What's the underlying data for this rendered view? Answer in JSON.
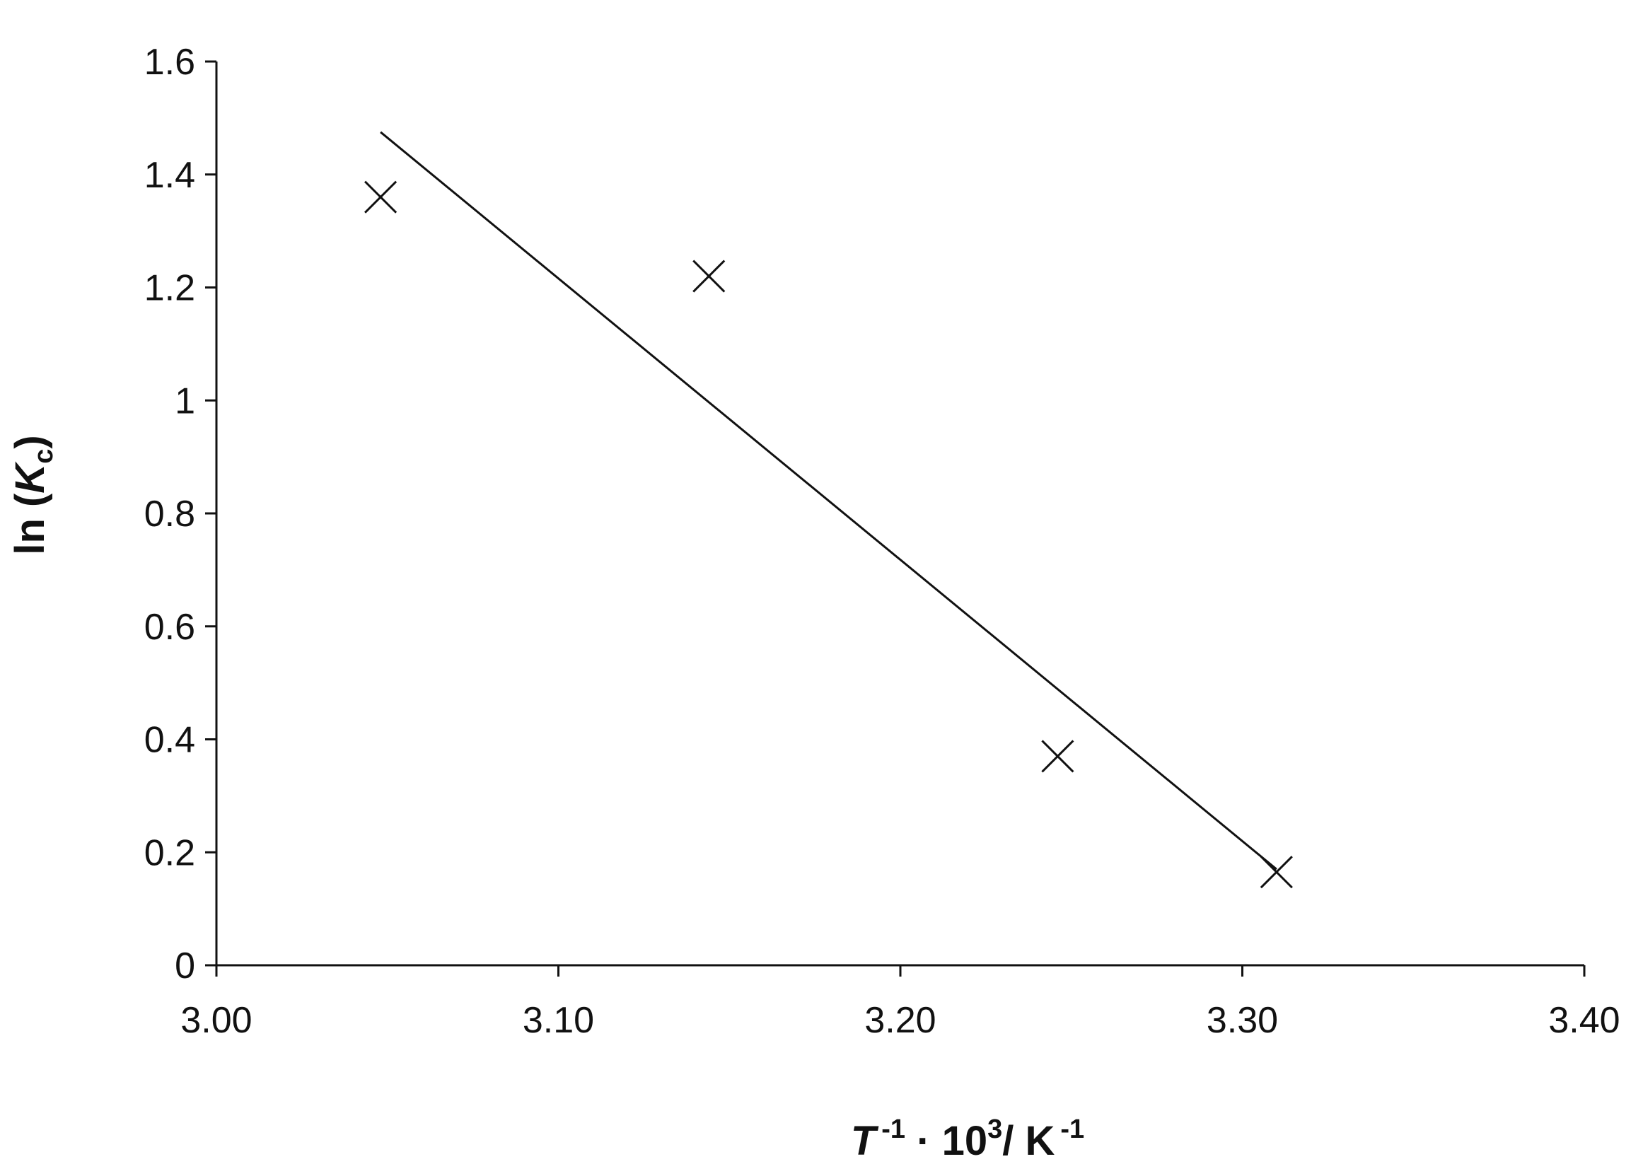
{
  "chart_data": {
    "type": "scatter",
    "title": "",
    "xlabel": {
      "symbol": "T",
      "exp1": "-1",
      "mid": " · 10",
      "exp2": "3",
      "tail": "/ K",
      "exp3": "-1"
    },
    "ylabel": {
      "prefix": "ln (",
      "symbol": "K",
      "subscript": "c",
      "suffix": ")"
    },
    "xlim": [
      3.0,
      3.4
    ],
    "ylim": [
      0,
      1.6
    ],
    "x_ticks": [
      3.0,
      3.1,
      3.2,
      3.3,
      3.4
    ],
    "x_tick_labels": [
      "3.00",
      "3.10",
      "3.20",
      "3.30",
      "3.40"
    ],
    "y_ticks": [
      0,
      0.2,
      0.4,
      0.6,
      0.8,
      1.0,
      1.2,
      1.4,
      1.6
    ],
    "y_tick_labels": [
      "0",
      "0.2",
      "0.4",
      "0.6",
      "0.8",
      "1",
      "1.2",
      "1.4",
      "1.6"
    ],
    "grid": false,
    "legend": "none",
    "marker": "x",
    "color": "#111111",
    "series": [
      {
        "x": [
          3.048,
          3.144,
          3.246,
          3.31
        ],
        "y": [
          1.36,
          1.22,
          0.37,
          0.165
        ]
      }
    ],
    "trendline": {
      "x": [
        3.048,
        3.31
      ],
      "y": [
        1.475,
        0.17
      ]
    }
  }
}
